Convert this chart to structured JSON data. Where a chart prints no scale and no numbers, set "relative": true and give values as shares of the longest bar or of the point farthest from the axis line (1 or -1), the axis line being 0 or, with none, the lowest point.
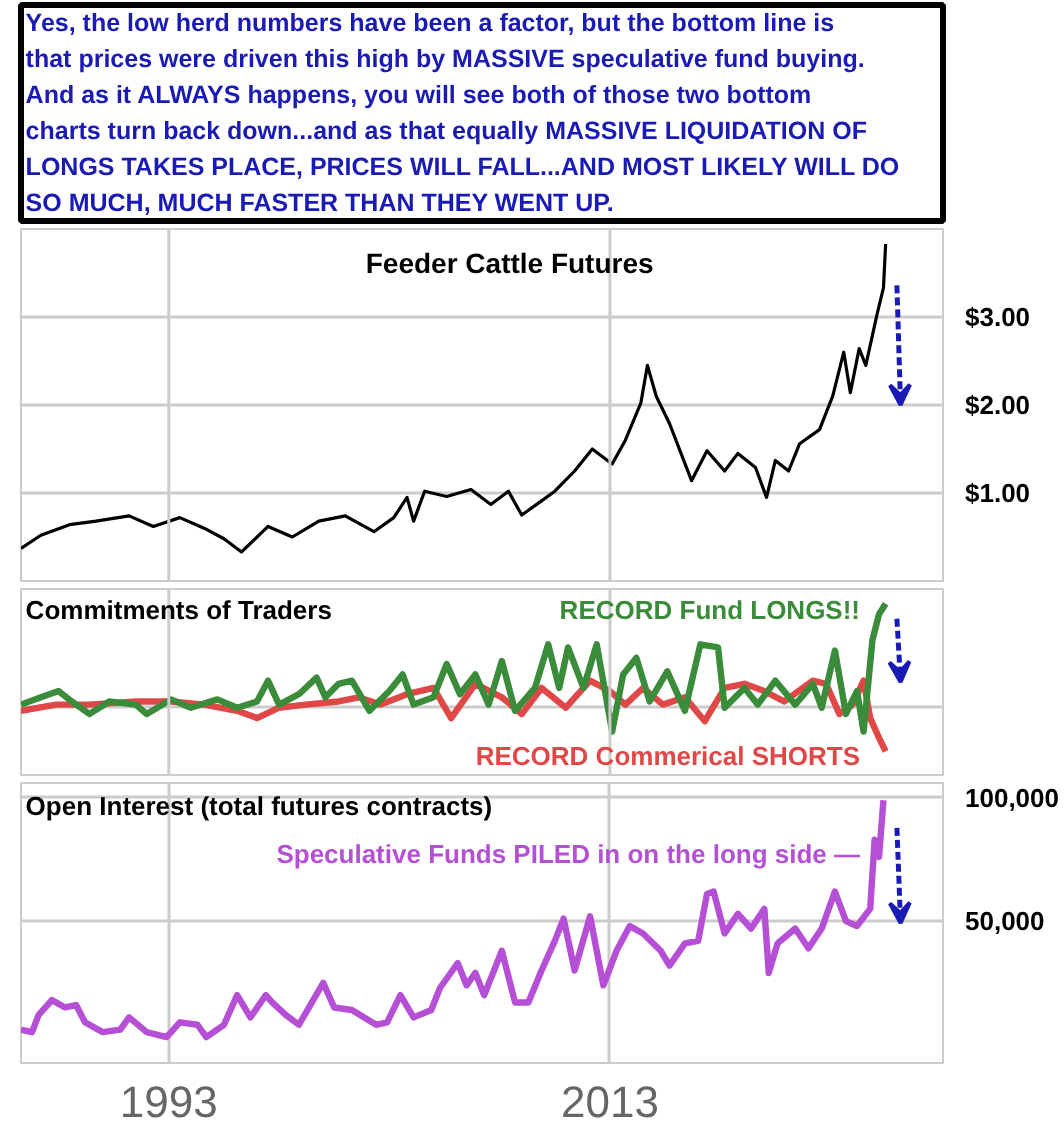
{
  "chart_data": [
    {
      "type": "other",
      "color": "#1a1ab4",
      "annotations": [
        "Yes, the low herd numbers have been a factor, but the bottom line is",
        "that prices were driven this high by MASSIVE speculative fund buying.",
        "And as it ALWAYS happens, you will see both of those two bottom",
        "charts turn back down...and as that equally MASSIVE LIQUIDATION OF",
        "LONGS TAKES PLACE, PRICES WILL FALL...AND MOST LIKELY WILL DO",
        "SO MUCH, MUCH FASTER THAN THEY WENT UP."
      ]
    },
    {
      "type": "line",
      "title": "Feeder Cattle Futures",
      "color": "#000000",
      "x": [
        1986.3,
        1987.2,
        1988.5,
        1989.7,
        1991.2,
        1992.3,
        1993.5,
        1994.6,
        1995.5,
        1996.3,
        1997.5,
        1998.6,
        1999.8,
        2001.0,
        2002.3,
        2003.2,
        2003.8,
        2004.1,
        2004.6,
        2005.6,
        2006.7,
        2007.6,
        2008.4,
        2009.0,
        2009.9,
        2010.5,
        2011.4,
        2012.2,
        2013.1,
        2013.7,
        2014.4,
        2014.7,
        2015.1,
        2015.7,
        2016.7,
        2017.4,
        2018.2,
        2018.8,
        2019.6,
        2020.1,
        2020.5,
        2021.1,
        2021.6,
        2022.5,
        2023.1,
        2023.6,
        2023.9,
        2024.3,
        2024.6,
        2025.1,
        2025.4,
        2025.5
      ],
      "values": [
        0.37,
        0.52,
        0.64,
        0.68,
        0.74,
        0.62,
        0.72,
        0.6,
        0.48,
        0.33,
        0.62,
        0.5,
        0.68,
        0.74,
        0.56,
        0.72,
        0.95,
        0.68,
        1.02,
        0.96,
        1.04,
        0.87,
        1.02,
        0.75,
        0.91,
        1.02,
        1.25,
        1.5,
        1.33,
        1.6,
        2.02,
        2.45,
        2.1,
        1.79,
        1.14,
        1.48,
        1.25,
        1.45,
        1.29,
        0.95,
        1.37,
        1.25,
        1.56,
        1.72,
        2.1,
        2.6,
        2.14,
        2.64,
        2.45,
        3.02,
        3.33,
        3.83
      ],
      "xlim": [
        1986.3,
        2028.1
      ],
      "ylim": [
        0,
        4.0
      ],
      "yticks": [
        {
          "value": 1,
          "label": "$1.00"
        },
        {
          "value": 2,
          "label": "$2.00"
        },
        {
          "value": 3,
          "label": "$3.00"
        }
      ],
      "grid": true,
      "tick_labels": "y"
    },
    {
      "type": "line",
      "title": "Commitments of Traders",
      "relative": true,
      "xlim": [
        1986.3,
        2028.1
      ],
      "grid": true,
      "tick_labels": false,
      "series": [
        {
          "name": "RECORD Fund LONGS!!",
          "color": "#3a8c3a",
          "x": [
            1986.3,
            1987.2,
            1988.0,
            1988.6,
            1989.4,
            1990.3,
            1991.5,
            1992.0,
            1993.1,
            1994.0,
            1995.2,
            1996.1,
            1997.0,
            1997.5,
            1998.0,
            1998.9,
            1999.7,
            2000.1,
            2000.7,
            2001.3,
            2002.1,
            2003.0,
            2003.6,
            2004.1,
            2005.0,
            2005.6,
            2006.2,
            2006.9,
            2007.5,
            2008.1,
            2008.7,
            2009.6,
            2010.2,
            2010.7,
            2011.1,
            2011.8,
            2012.4,
            2013.1,
            2013.6,
            2014.2,
            2014.8,
            2015.6,
            2016.4,
            2017.1,
            2017.9,
            2018.2,
            2019.1,
            2019.7,
            2020.5,
            2021.4,
            2022.2,
            2022.6,
            2023.2,
            2023.7,
            2024.2,
            2024.5,
            2024.9,
            2025.2,
            2025.5
          ],
          "values": [
            0.03,
            0.1,
            0.16,
            0.06,
            -0.06,
            0.06,
            0.03,
            -0.06,
            0.08,
            0,
            0.08,
            0,
            0.06,
            0.26,
            0.03,
            0.13,
            0.29,
            0.1,
            0.23,
            0.26,
            -0.03,
            0.16,
            0.32,
            0.03,
            0.1,
            0.42,
            0.13,
            0.32,
            0.03,
            0.45,
            -0.03,
            0.19,
            0.61,
            0.19,
            0.58,
            0.19,
            0.61,
            -0.23,
            0.32,
            0.48,
            0.06,
            0.35,
            -0.03,
            0.61,
            0.58,
            0,
            0.19,
            0.03,
            0.26,
            0.03,
            0.23,
            0,
            0.55,
            -0.06,
            0.16,
            -0.23,
            0.65,
            0.9,
            1.0
          ]
        },
        {
          "name": "RECORD Commerical SHORTS",
          "color": "#e04848",
          "x": [
            1986.3,
            1987.9,
            1989.4,
            1991.5,
            1993.1,
            1994.6,
            1996.1,
            1997.0,
            1998.0,
            1999.2,
            2000.7,
            2001.6,
            2002.6,
            2003.8,
            2005.0,
            2005.8,
            2006.9,
            2008.1,
            2009.0,
            2009.9,
            2011.0,
            2012.1,
            2013.0,
            2013.7,
            2014.5,
            2015.4,
            2016.4,
            2017.3,
            2018.2,
            2019.1,
            2020.0,
            2020.9,
            2022.2,
            2022.8,
            2023.4,
            2024.0,
            2024.5,
            2024.8,
            2025.2,
            2025.5
          ],
          "values": [
            -0.03,
            0.03,
            0.03,
            0.06,
            0.06,
            0.03,
            -0.03,
            -0.1,
            0,
            0.03,
            0.06,
            0.1,
            0.03,
            0.13,
            0.19,
            -0.1,
            0.23,
            0.1,
            -0.06,
            0.19,
            0,
            0.26,
            0.16,
            0.03,
            0.19,
            0.03,
            0.1,
            -0.13,
            0.19,
            0.23,
            0.16,
            0.06,
            0.26,
            0.23,
            -0.06,
            0.03,
            0.26,
            -0.1,
            -0.29,
            -0.42
          ]
        }
      ]
    },
    {
      "type": "line",
      "title": "Open Interest (total futures contracts)",
      "xlim": [
        1986.3,
        2028.1
      ],
      "xticks": [
        1993,
        2013
      ],
      "ylim": [
        -7500,
        106000
      ],
      "yticks": [
        {
          "value": 50000,
          "label": "50,000"
        },
        {
          "value": 100000,
          "label": "100,000"
        }
      ],
      "grid": true,
      "series": [
        {
          "name": "Speculative Funds PILED in on the long side —",
          "color": "#b54fd6",
          "x": [
            1986.3,
            1986.8,
            1987.1,
            1987.7,
            1988.3,
            1988.8,
            1989.2,
            1990.0,
            1990.8,
            1991.2,
            1992.0,
            1992.9,
            1993.5,
            1994.3,
            1994.7,
            1995.5,
            1996.1,
            1996.7,
            1997.4,
            1997.7,
            1998.3,
            1998.9,
            2000.0,
            2000.5,
            2001.3,
            2002.4,
            2002.9,
            2003.5,
            2004.1,
            2004.9,
            2005.3,
            2006.1,
            2006.5,
            2006.9,
            2007.3,
            2008.1,
            2008.7,
            2009.3,
            2009.9,
            2010.5,
            2010.9,
            2011.4,
            2012.1,
            2012.7,
            2013.3,
            2013.9,
            2014.5,
            2015.3,
            2015.7,
            2016.4,
            2017.0,
            2017.4,
            2017.7,
            2018.2,
            2018.8,
            2019.4,
            2020.0,
            2020.2,
            2020.6,
            2021.4,
            2022.0,
            2022.6,
            2023.2,
            2023.7,
            2024.2,
            2024.8,
            2025.0,
            2025.2,
            2025.4
          ],
          "values": [
            6000,
            5000,
            12000,
            18000,
            15000,
            16000,
            9000,
            5000,
            6000,
            11000,
            5000,
            3000,
            9000,
            8000,
            3000,
            8000,
            20000,
            11000,
            20000,
            17000,
            12000,
            8000,
            25000,
            15000,
            14000,
            8000,
            9000,
            20000,
            11000,
            14000,
            23000,
            33000,
            24000,
            29000,
            20000,
            38000,
            17000,
            17000,
            30000,
            42000,
            51000,
            30000,
            52000,
            24000,
            38000,
            48000,
            45000,
            38000,
            32000,
            41000,
            42000,
            61000,
            62000,
            45000,
            53000,
            47000,
            55000,
            29000,
            41000,
            47000,
            39000,
            47000,
            62000,
            50000,
            48000,
            55000,
            83000,
            76000,
            99000
          ]
        }
      ]
    }
  ]
}
